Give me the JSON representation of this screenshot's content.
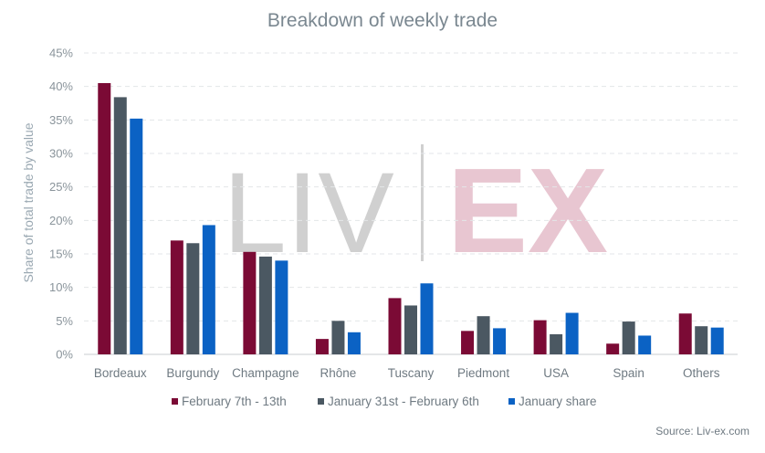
{
  "chart_data": {
    "type": "bar",
    "title": "Breakdown of weekly trade",
    "ylabel": "Share of total trade by value",
    "xlabel": "",
    "ylim": [
      0,
      45
    ],
    "yticks": [
      0,
      5,
      10,
      15,
      20,
      25,
      30,
      35,
      40,
      45
    ],
    "ytick_labels": [
      "0%",
      "5%",
      "10%",
      "15%",
      "20%",
      "25%",
      "30%",
      "35%",
      "40%",
      "45%"
    ],
    "grid": true,
    "legend_position": "bottom",
    "categories": [
      "Bordeaux",
      "Burgundy",
      "Champagne",
      "Rhône",
      "Tuscany",
      "Piedmont",
      "USA",
      "Spain",
      "Others"
    ],
    "series": [
      {
        "name": "February 7th - 13th",
        "color": "#7b0a35",
        "values": [
          40.5,
          17.0,
          15.3,
          2.3,
          8.4,
          3.5,
          5.1,
          1.6,
          6.1
        ]
      },
      {
        "name": "January 31st - February 6th",
        "color": "#4b5862",
        "values": [
          38.4,
          16.6,
          14.6,
          5.0,
          7.3,
          5.7,
          3.0,
          4.9,
          4.2
        ]
      },
      {
        "name": "January share",
        "color": "#0b62c4",
        "values": [
          35.2,
          19.3,
          14.0,
          3.3,
          10.6,
          3.9,
          6.2,
          2.8,
          4.0
        ]
      }
    ],
    "source": "Source: Liv-ex.com"
  },
  "watermark": {
    "left": "LIV",
    "right": "EX"
  }
}
